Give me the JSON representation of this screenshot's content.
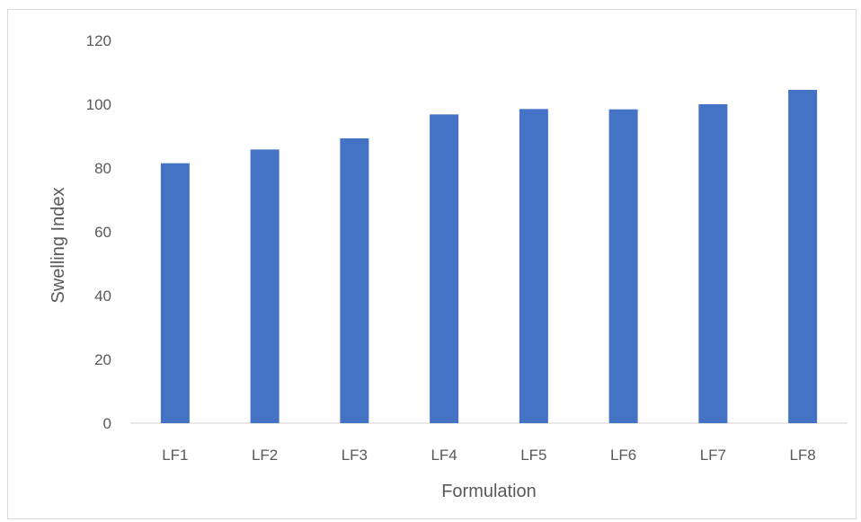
{
  "chart_data": {
    "type": "bar",
    "title": "",
    "xlabel": "Formulation",
    "ylabel": "Swelling Index",
    "categories": [
      "LF1",
      "LF2",
      "LF3",
      "LF4",
      "LF5",
      "LF6",
      "LF7",
      "LF8"
    ],
    "values": [
      81.5,
      85.8,
      89.3,
      96.8,
      98.5,
      98.4,
      100,
      104.5
    ],
    "ylim": [
      0,
      120
    ],
    "yticks": [
      0,
      20,
      40,
      60,
      80,
      100,
      120
    ],
    "grid": false,
    "legend": "none",
    "bar_color": "#4472c4",
    "axis_color": "#d9d9d9",
    "text_color": "#595959"
  }
}
